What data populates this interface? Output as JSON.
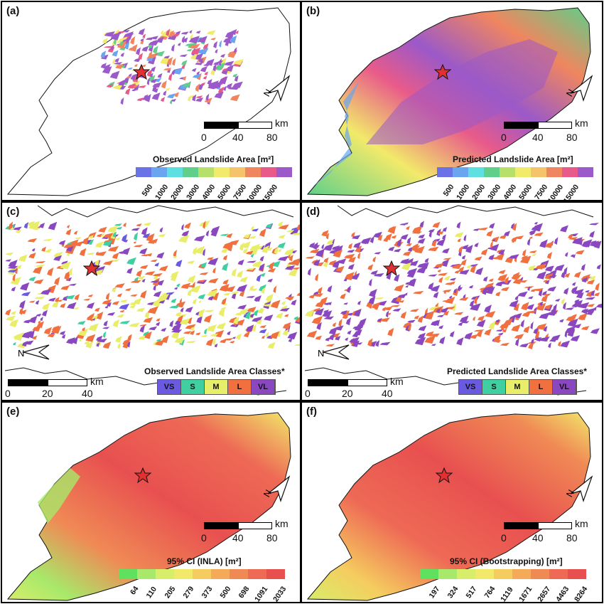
{
  "panels": {
    "a": {
      "label": "(a)",
      "legend_title": "Observed Landslide Area [m²]",
      "ticks": [
        "500",
        "1000",
        "2000",
        "3000",
        "4000",
        "5000",
        "7500",
        "10000",
        "15000"
      ]
    },
    "b": {
      "label": "(b)",
      "legend_title": "Predicted Landslide Area [m²]",
      "ticks": [
        "500",
        "1000",
        "2000",
        "3000",
        "4000",
        "5000",
        "7500",
        "10000",
        "15000"
      ]
    },
    "c": {
      "label": "(c)",
      "legend_title": "Observed Landslide Area Classes*",
      "classes": [
        "VS",
        "S",
        "M",
        "L",
        "VL"
      ]
    },
    "d": {
      "label": "(d)",
      "legend_title": "Predicted Landslide Area Classes*",
      "classes": [
        "VS",
        "S",
        "M",
        "L",
        "VL"
      ]
    },
    "e": {
      "label": "(e)",
      "legend_title": "95% CI (INLA) [m²]",
      "ticks": [
        "64",
        "110",
        "205",
        "279",
        "373",
        "500",
        "698",
        "1091",
        "2033"
      ]
    },
    "f": {
      "label": "(f)",
      "legend_title": "95% CI (Bootstrapping) [m²]",
      "ticks": [
        "197",
        "324",
        "517",
        "764",
        "1119",
        "1671",
        "2657",
        "4463",
        "8264"
      ]
    }
  },
  "scale_wide": {
    "unit": "km",
    "labels": [
      "0",
      "40",
      "80"
    ]
  },
  "scale_zoom": {
    "unit": "km",
    "labels": [
      "0",
      "20",
      "40"
    ]
  },
  "north_label": "N",
  "colors": {
    "area_ramp": [
      "#6a73e6",
      "#6aa5f0",
      "#5fe0e0",
      "#5fcf8a",
      "#b6e06a",
      "#f2ea6a",
      "#f5c46a",
      "#f0865f",
      "#e85a8a",
      "#9b59c9"
    ],
    "classes": [
      "#6a5ae0",
      "#3fcfa0",
      "#e8ee6a",
      "#f07040",
      "#8a48c0"
    ],
    "ci_ramp": [
      "#5fe05f",
      "#a8e86a",
      "#d8ee6a",
      "#f2e86a",
      "#f5cc5f",
      "#f5aa5a",
      "#f08a55",
      "#ee6a55",
      "#e85050"
    ],
    "star": "#e03030"
  }
}
